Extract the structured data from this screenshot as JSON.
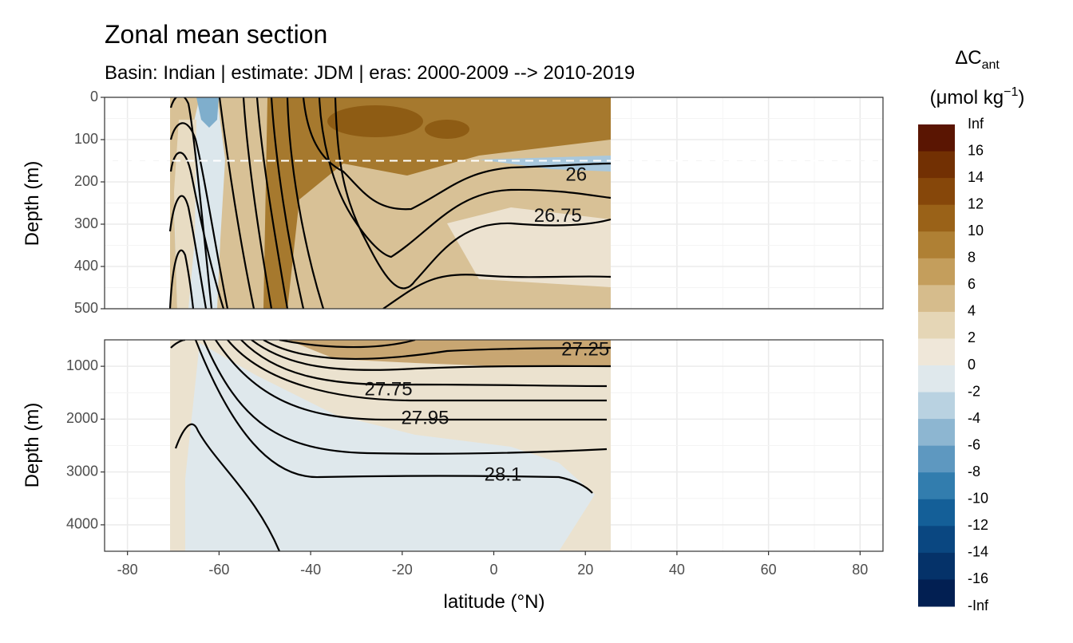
{
  "chart_data": {
    "type": "heatmap",
    "title": "Zonal mean section",
    "subtitle": "Basin: Indian | estimate: JDM  | eras: 2000-2009 --> 2010-2019",
    "xlabel": "latitude (°N)",
    "ylabel": "Depth (m)",
    "xlim": [
      -85,
      85
    ],
    "x_ticks": [
      -80,
      -60,
      -40,
      -20,
      0,
      20,
      40,
      60,
      80
    ],
    "grid": true,
    "legend_position": "right",
    "panels": [
      {
        "name": "upper",
        "ylim": [
          0,
          500
        ],
        "y_ticks": [
          0,
          100,
          200,
          300,
          400,
          500
        ],
        "reference_line_depth": 150,
        "isopycnal_labels": [
          {
            "text": "26",
            "lat": 18,
            "depth": 185
          },
          {
            "text": "26.75",
            "lat": 14,
            "depth": 282
          }
        ]
      },
      {
        "name": "lower",
        "ylim": [
          500,
          4500
        ],
        "y_ticks": [
          1000,
          2000,
          3000,
          4000
        ],
        "isopycnal_labels": [
          {
            "text": "27.25",
            "lat": 20,
            "depth": 700
          },
          {
            "text": "27.75",
            "lat": -23,
            "depth": 1450
          },
          {
            "text": "27.95",
            "lat": -15,
            "depth": 2000
          },
          {
            "text": "28.1",
            "lat": 2,
            "depth": 3070
          }
        ]
      }
    ],
    "data_extent": {
      "lat": [
        -70,
        25
      ],
      "depth": [
        0,
        4500
      ]
    },
    "legend": {
      "title_main": "ΔC",
      "title_sub": "ant",
      "unit_main": "(μmol kg",
      "unit_sup": "−1",
      "unit_close": ")",
      "ticks": [
        "Inf",
        "16",
        "14",
        "12",
        "10",
        "8",
        "6",
        "4",
        "2",
        "0",
        "-2",
        "-4",
        "-6",
        "-8",
        "-10",
        "-12",
        "-14",
        "-16",
        "-Inf"
      ],
      "colors": [
        "#5a1502",
        "#723003",
        "#86470a",
        "#9a6218",
        "#af8034",
        "#c49e5c",
        "#d6bc8c",
        "#e5d6b6",
        "#efe7d9",
        "#dfe8ec",
        "#b9d2e1",
        "#8db6d1",
        "#5e98c0",
        "#327dae",
        "#145f98",
        "#0a4781",
        "#053269",
        "#021f52"
      ]
    }
  }
}
